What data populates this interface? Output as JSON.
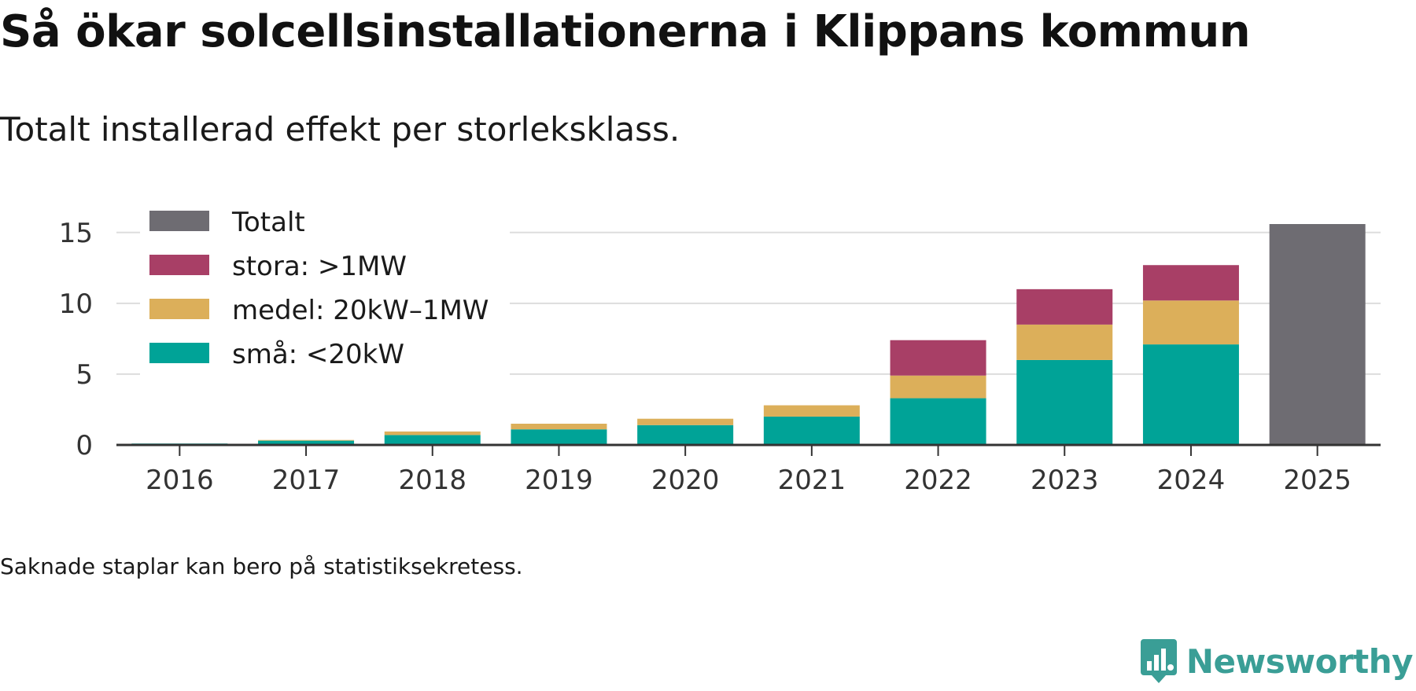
{
  "header": {
    "title": "Så ökar solcellsinstallationerna i Klippans kommun",
    "subtitle": "Totalt installerad effekt per storleksklass."
  },
  "footer": {
    "note": "Saknade staplar kan bero på statistiksekretess.",
    "brand": "Newsworthy"
  },
  "colors": {
    "small": "#00a397",
    "medium": "#dcaf5a",
    "large": "#a83f66",
    "total": "#6e6c72",
    "grid": "#dddddd",
    "axis": "#333333",
    "brand": "#3a9e96"
  },
  "chart_data": {
    "type": "bar",
    "stacked": true,
    "title": "Så ökar solcellsinstallationerna i Klippans kommun",
    "subtitle": "Totalt installerad effekt per storleksklass.",
    "categories": [
      "2016",
      "2017",
      "2018",
      "2019",
      "2020",
      "2021",
      "2022",
      "2023",
      "2024",
      "2025"
    ],
    "series": [
      {
        "name": "små: <20kW",
        "color": "#00a397",
        "values": [
          0.1,
          0.3,
          0.7,
          1.1,
          1.4,
          2.0,
          3.3,
          6.0,
          7.1,
          null
        ]
      },
      {
        "name": "medel: 20kW–1MW",
        "color": "#dcaf5a",
        "values": [
          0.0,
          0.05,
          0.25,
          0.4,
          0.45,
          0.8,
          1.6,
          2.5,
          3.1,
          null
        ]
      },
      {
        "name": "stora: >1MW",
        "color": "#a83f66",
        "values": [
          0,
          0,
          0,
          0,
          0,
          0,
          2.5,
          2.5,
          2.5,
          null
        ]
      },
      {
        "name": "Totalt",
        "color": "#6e6c72",
        "values": [
          null,
          null,
          null,
          null,
          null,
          null,
          null,
          null,
          null,
          15.6
        ]
      }
    ],
    "legend_order": [
      "Totalt",
      "stora: >1MW",
      "medel: 20kW–1MW",
      "små: <20kW"
    ],
    "legend_position": "top-left",
    "yticks": [
      0,
      5,
      10,
      15
    ],
    "ylim": [
      0,
      15.6
    ],
    "grid": true,
    "xlabel": "",
    "ylabel": ""
  }
}
